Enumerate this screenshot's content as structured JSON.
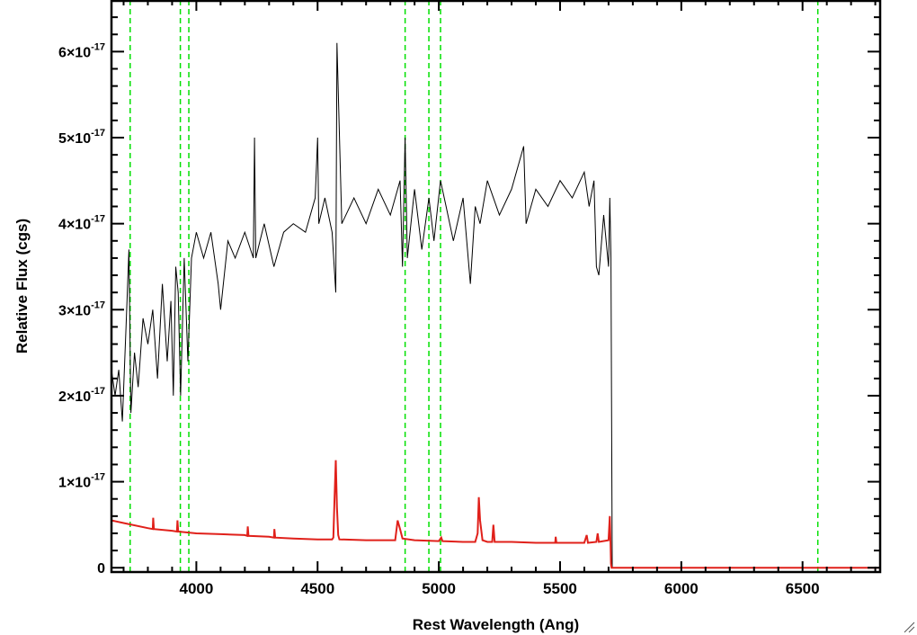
{
  "chart_data": {
    "type": "line",
    "title": "",
    "xlabel": "Rest Wavelength (Ang)",
    "ylabel": "Relative Flux (cgs)",
    "xlim": [
      3650,
      6820
    ],
    "ylim": [
      -5e-19,
      6.6e-17
    ],
    "x_ticks": [
      4000,
      4500,
      5000,
      5500,
      6000,
      6500
    ],
    "x_tick_labels": [
      "4000",
      "4500",
      "5000",
      "5500",
      "6000",
      "6500"
    ],
    "y_ticks": [
      0,
      1e-17,
      2e-17,
      3e-17,
      4e-17,
      5e-17,
      6e-17
    ],
    "y_tick_labels": [
      {
        "mant": "0",
        "exp": ""
      },
      {
        "mant": "1×10",
        "exp": "-17"
      },
      {
        "mant": "2×10",
        "exp": "-17"
      },
      {
        "mant": "3×10",
        "exp": "-17"
      },
      {
        "mant": "4×10",
        "exp": "-17"
      },
      {
        "mant": "5×10",
        "exp": "-17"
      },
      {
        "mant": "6×10",
        "exp": "-17"
      }
    ],
    "grid": false,
    "legend": "none",
    "series": [
      {
        "role": "spectrum",
        "color": "#000000",
        "x": [
          3650,
          3665,
          3680,
          3695,
          3710,
          3722,
          3730,
          3745,
          3760,
          3780,
          3800,
          3820,
          3840,
          3860,
          3880,
          3895,
          3905,
          3915,
          3925,
          3935,
          3950,
          3965,
          3980,
          4000,
          4030,
          4060,
          4090,
          4100,
          4130,
          4160,
          4200,
          4235,
          4240,
          4245,
          4280,
          4320,
          4360,
          4400,
          4450,
          4490,
          4500,
          4505,
          4530,
          4560,
          4575,
          4580,
          4600,
          4650,
          4700,
          4750,
          4800,
          4840,
          4850,
          4861,
          4870,
          4900,
          4930,
          4959,
          4980,
          5007,
          5030,
          5060,
          5100,
          5130,
          5150,
          5170,
          5200,
          5250,
          5300,
          5350,
          5360,
          5400,
          5450,
          5500,
          5550,
          5600,
          5620,
          5640,
          5650,
          5660,
          5680,
          5700,
          5705,
          5710,
          5712,
          5715,
          5800,
          6000,
          6500,
          6820
        ],
        "y": [
          2.3e-17,
          2e-17,
          2.3e-17,
          1.7e-17,
          2.8e-17,
          3.7e-17,
          1.8e-17,
          2.5e-17,
          2.1e-17,
          2.9e-17,
          2.6e-17,
          3e-17,
          2.2e-17,
          3.3e-17,
          2.4e-17,
          3.1e-17,
          2e-17,
          3.5e-17,
          3.2e-17,
          2e-17,
          3.6e-17,
          2.4e-17,
          3.6e-17,
          3.9e-17,
          3.6e-17,
          3.9e-17,
          3.3e-17,
          3e-17,
          3.8e-17,
          3.6e-17,
          3.9e-17,
          3.6e-17,
          5e-17,
          3.6e-17,
          4e-17,
          3.5e-17,
          3.9e-17,
          4e-17,
          3.9e-17,
          4.3e-17,
          5e-17,
          4e-17,
          4.3e-17,
          3.9e-17,
          3.2e-17,
          6.1e-17,
          4e-17,
          4.3e-17,
          4e-17,
          4.4e-17,
          4.1e-17,
          4.5e-17,
          3.5e-17,
          5e-17,
          3.6e-17,
          4.4e-17,
          3.7e-17,
          4.3e-17,
          3.8e-17,
          4.5e-17,
          4.2e-17,
          3.8e-17,
          4.3e-17,
          3.3e-17,
          4.2e-17,
          4e-17,
          4.5e-17,
          4.1e-17,
          4.4e-17,
          4.9e-17,
          4e-17,
          4.4e-17,
          4.2e-17,
          4.5e-17,
          4.3e-17,
          4.6e-17,
          4.2e-17,
          4.5e-17,
          3.5e-17,
          3.4e-17,
          4.1e-17,
          3.5e-17,
          4.3e-17,
          3.6e-17,
          2e-17,
          0,
          0,
          0,
          0,
          0
        ]
      },
      {
        "role": "error",
        "color": "#e0201a",
        "x": [
          3650,
          3700,
          3800,
          3820,
          3822,
          3825,
          3900,
          3920,
          3922,
          3925,
          4000,
          4100,
          4200,
          4210,
          4212,
          4215,
          4300,
          4320,
          4322,
          4325,
          4400,
          4500,
          4560,
          4565,
          4570,
          4575,
          4580,
          4585,
          4590,
          4700,
          4820,
          4830,
          4840,
          4850,
          4900,
          5000,
          5010,
          5015,
          5100,
          5150,
          5160,
          5165,
          5170,
          5180,
          5200,
          5220,
          5225,
          5230,
          5300,
          5400,
          5480,
          5482,
          5485,
          5600,
          5610,
          5615,
          5650,
          5655,
          5660,
          5700,
          5705,
          5708,
          5710,
          5712,
          5720,
          6000,
          6500,
          6820
        ],
        "y": [
          5.5e-18,
          5.2e-18,
          4.6e-18,
          4.5e-18,
          5.8e-18,
          4.5e-18,
          4.3e-18,
          4.2e-18,
          5.5e-18,
          4.2e-18,
          4e-18,
          3.9e-18,
          3.8e-18,
          3.7e-18,
          4.8e-18,
          3.7e-18,
          3.6e-18,
          3.5e-18,
          4.5e-18,
          3.5e-18,
          3.4e-18,
          3.3e-18,
          3.3e-18,
          3.5e-18,
          8e-18,
          1.25e-17,
          7e-18,
          3.8e-18,
          3.3e-18,
          3.2e-18,
          3.2e-18,
          5.5e-18,
          4.5e-18,
          3.4e-18,
          3.2e-18,
          3.1e-18,
          3.5e-18,
          3.1e-18,
          3e-18,
          3e-18,
          4e-18,
          8.2e-18,
          5.5e-18,
          3.2e-18,
          3e-18,
          3e-18,
          5e-18,
          3e-18,
          3e-18,
          2.9e-18,
          2.9e-18,
          3.6e-18,
          2.9e-18,
          2.9e-18,
          3.8e-18,
          2.9e-18,
          3e-18,
          4e-18,
          3e-18,
          3.2e-18,
          6e-18,
          3e-18,
          5e-19,
          0,
          0,
          0,
          0,
          0
        ]
      }
    ],
    "vertical_lines": {
      "color": "#00e000",
      "style": "dashed",
      "x": [
        3727,
        3934,
        3969,
        4861,
        4959,
        5007,
        6563
      ]
    }
  }
}
